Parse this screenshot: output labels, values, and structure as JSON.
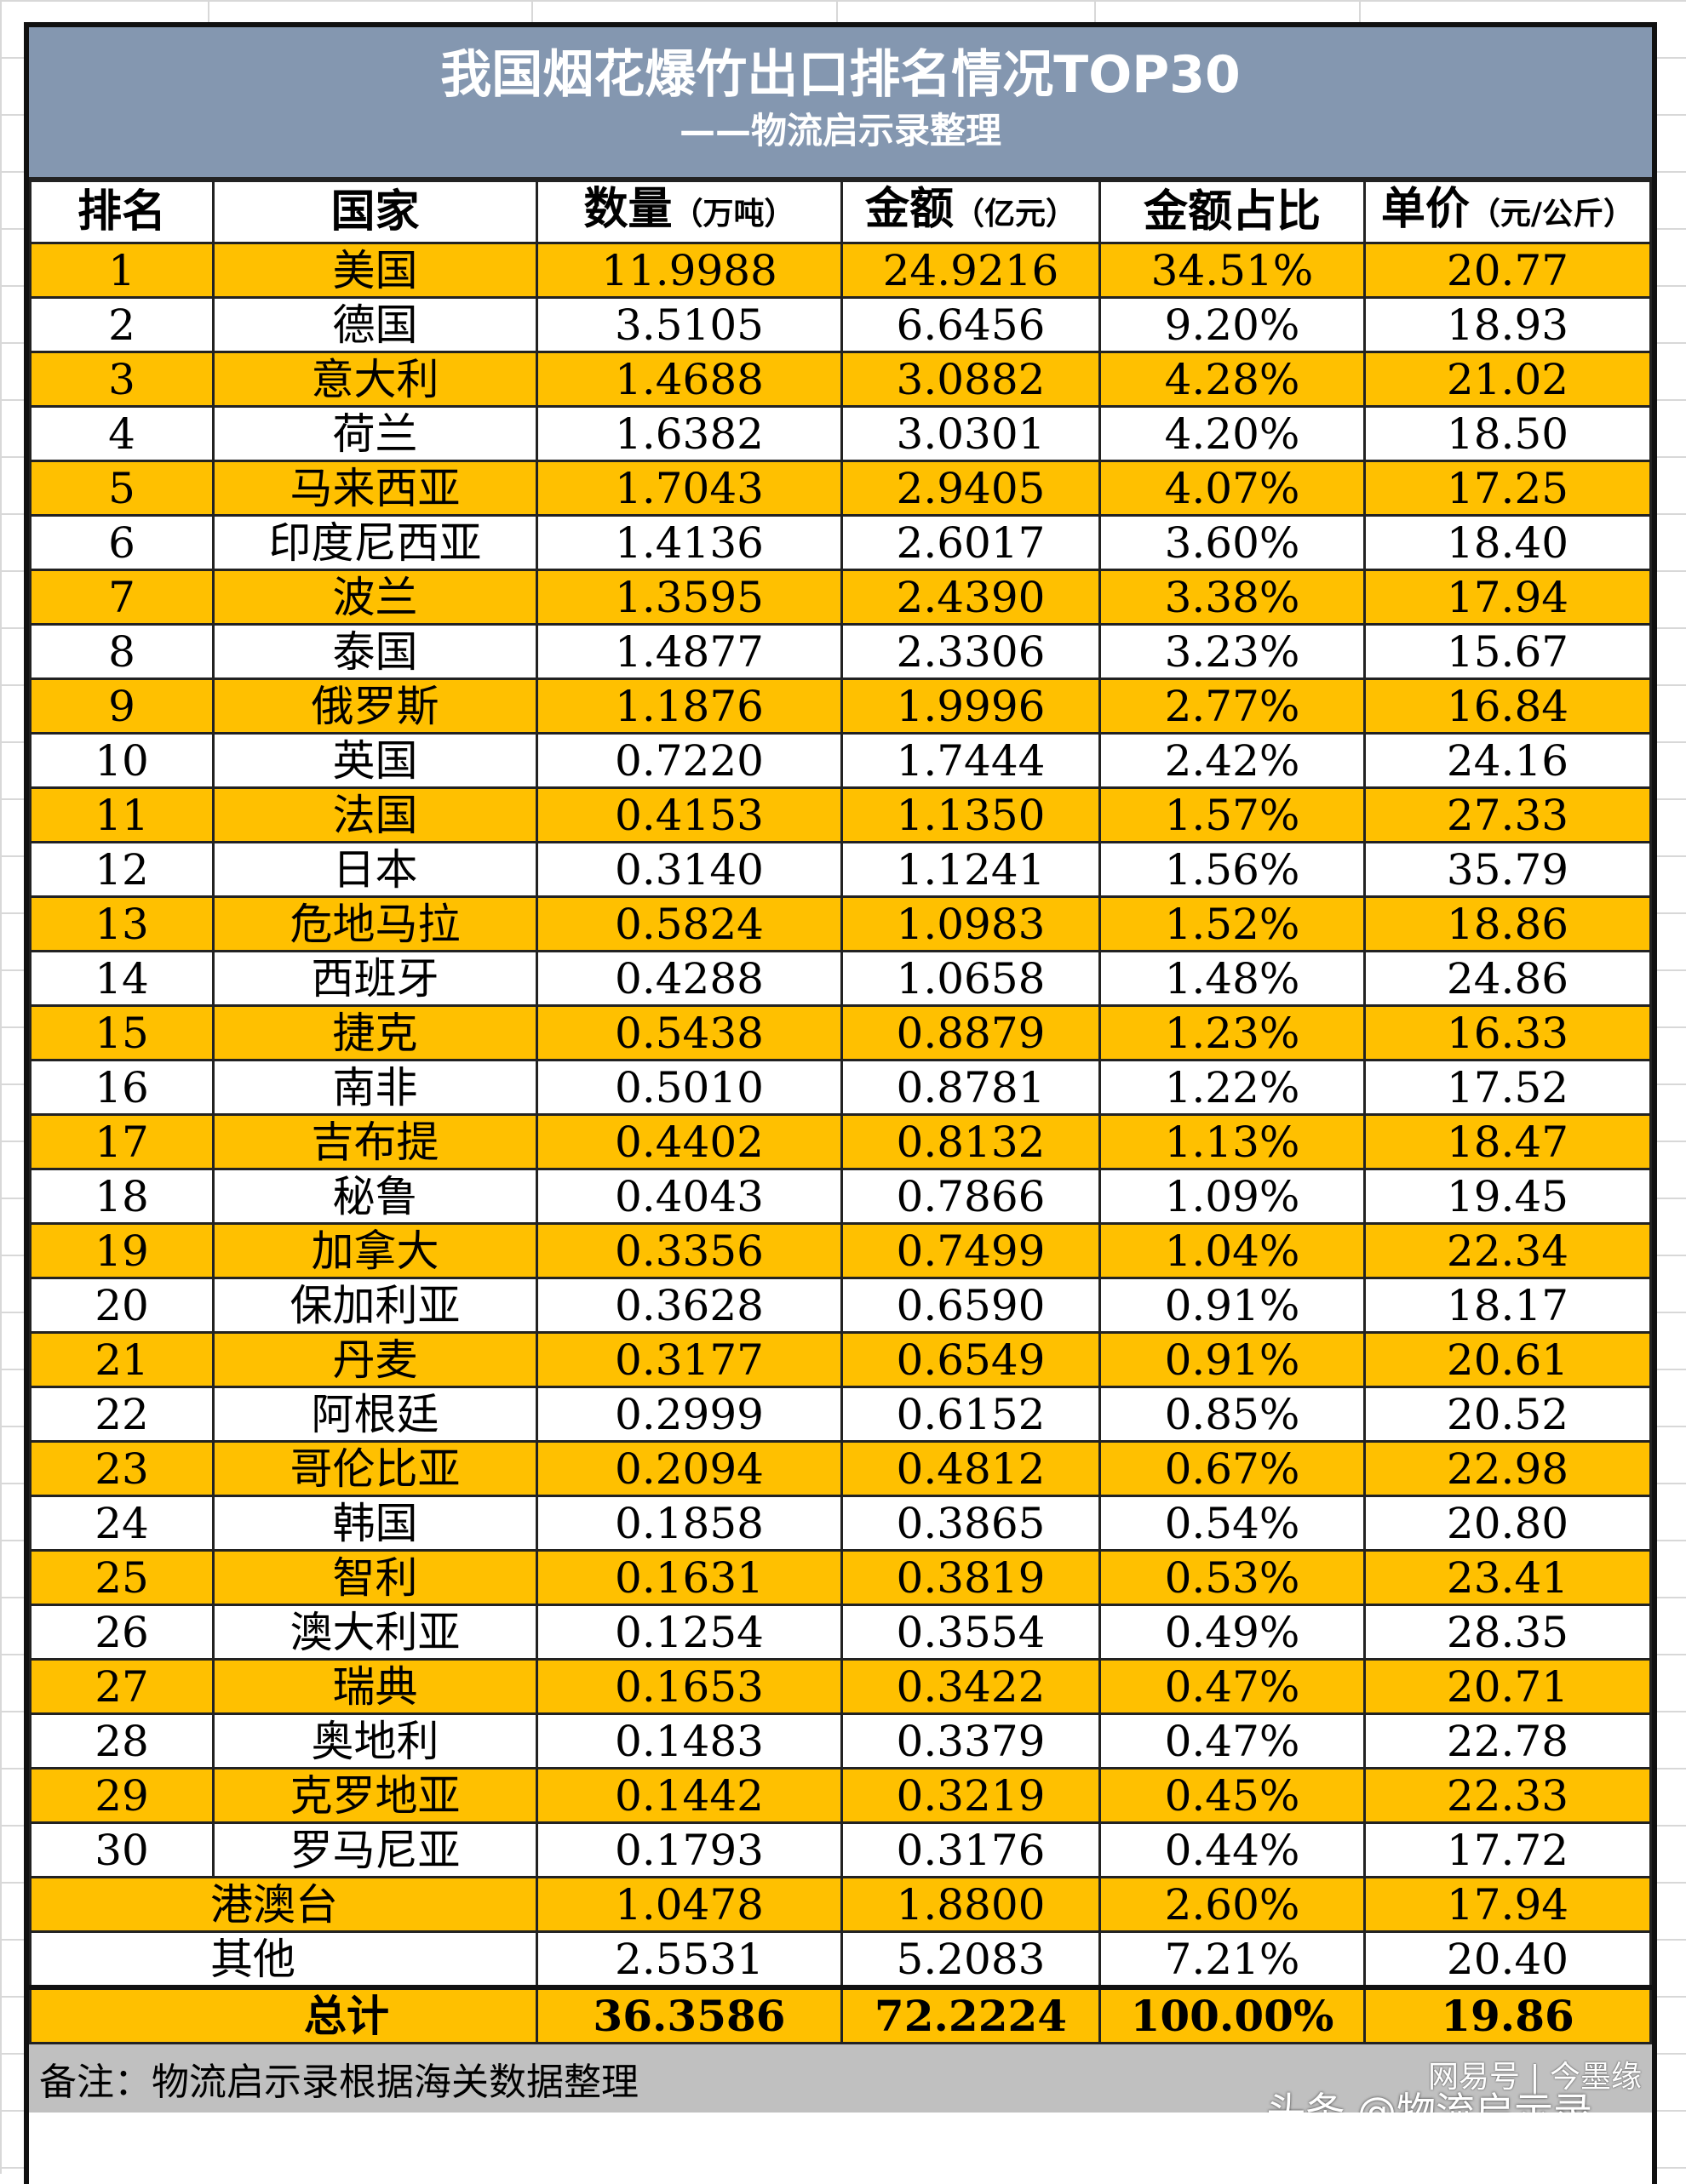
{
  "title": "我国烟花爆竹出口排名情况TOP30",
  "subtitle": "——物流启示录整理",
  "headers": [
    {
      "main": "排名",
      "unit": ""
    },
    {
      "main": "国家",
      "unit": ""
    },
    {
      "main": "数量",
      "unit": "（万吨）"
    },
    {
      "main": "金额",
      "unit": "（亿元）"
    },
    {
      "main": "金额占比",
      "unit": ""
    },
    {
      "main": "单价",
      "unit": "（元/公斤）"
    }
  ],
  "rows": [
    [
      "1",
      "美国",
      "11.9988",
      "24.9216",
      "34.51%",
      "20.77"
    ],
    [
      "2",
      "德国",
      "3.5105",
      "6.6456",
      "9.20%",
      "18.93"
    ],
    [
      "3",
      "意大利",
      "1.4688",
      "3.0882",
      "4.28%",
      "21.02"
    ],
    [
      "4",
      "荷兰",
      "1.6382",
      "3.0301",
      "4.20%",
      "18.50"
    ],
    [
      "5",
      "马来西亚",
      "1.7043",
      "2.9405",
      "4.07%",
      "17.25"
    ],
    [
      "6",
      "印度尼西亚",
      "1.4136",
      "2.6017",
      "3.60%",
      "18.40"
    ],
    [
      "7",
      "波兰",
      "1.3595",
      "2.4390",
      "3.38%",
      "17.94"
    ],
    [
      "8",
      "泰国",
      "1.4877",
      "2.3306",
      "3.23%",
      "15.67"
    ],
    [
      "9",
      "俄罗斯",
      "1.1876",
      "1.9996",
      "2.77%",
      "16.84"
    ],
    [
      "10",
      "英国",
      "0.7220",
      "1.7444",
      "2.42%",
      "24.16"
    ],
    [
      "11",
      "法国",
      "0.4153",
      "1.1350",
      "1.57%",
      "27.33"
    ],
    [
      "12",
      "日本",
      "0.3140",
      "1.1241",
      "1.56%",
      "35.79"
    ],
    [
      "13",
      "危地马拉",
      "0.5824",
      "1.0983",
      "1.52%",
      "18.86"
    ],
    [
      "14",
      "西班牙",
      "0.4288",
      "1.0658",
      "1.48%",
      "24.86"
    ],
    [
      "15",
      "捷克",
      "0.5438",
      "0.8879",
      "1.23%",
      "16.33"
    ],
    [
      "16",
      "南非",
      "0.5010",
      "0.8781",
      "1.22%",
      "17.52"
    ],
    [
      "17",
      "吉布提",
      "0.4402",
      "0.8132",
      "1.13%",
      "18.47"
    ],
    [
      "18",
      "秘鲁",
      "0.4043",
      "0.7866",
      "1.09%",
      "19.45"
    ],
    [
      "19",
      "加拿大",
      "0.3356",
      "0.7499",
      "1.04%",
      "22.34"
    ],
    [
      "20",
      "保加利亚",
      "0.3628",
      "0.6590",
      "0.91%",
      "18.17"
    ],
    [
      "21",
      "丹麦",
      "0.3177",
      "0.6549",
      "0.91%",
      "20.61"
    ],
    [
      "22",
      "阿根廷",
      "0.2999",
      "0.6152",
      "0.85%",
      "20.52"
    ],
    [
      "23",
      "哥伦比亚",
      "0.2094",
      "0.4812",
      "0.67%",
      "22.98"
    ],
    [
      "24",
      "韩国",
      "0.1858",
      "0.3865",
      "0.54%",
      "20.80"
    ],
    [
      "25",
      "智利",
      "0.1631",
      "0.3819",
      "0.53%",
      "23.41"
    ],
    [
      "26",
      "澳大利亚",
      "0.1254",
      "0.3554",
      "0.49%",
      "28.35"
    ],
    [
      "27",
      "瑞典",
      "0.1653",
      "0.3422",
      "0.47%",
      "20.71"
    ],
    [
      "28",
      "奥地利",
      "0.1483",
      "0.3379",
      "0.47%",
      "22.78"
    ],
    [
      "29",
      "克罗地亚",
      "0.1442",
      "0.3219",
      "0.45%",
      "22.33"
    ],
    [
      "30",
      "罗马尼亚",
      "0.1793",
      "0.3176",
      "0.44%",
      "17.72"
    ]
  ],
  "extra_rows": [
    [
      "港澳台",
      "1.0478",
      "1.8800",
      "2.60%",
      "17.94"
    ],
    [
      "其他",
      "2.5531",
      "5.2083",
      "7.21%",
      "20.40"
    ]
  ],
  "total": [
    "总计",
    "36.3586",
    "72.2224",
    "100.00%",
    "19.86"
  ],
  "note": "备注：物流启示录根据海关数据整理",
  "watermarks": [
    "网易号 | 今墨缘",
    "头条 @物流启示录"
  ],
  "colors": {
    "title_bg": "#8497b0",
    "highlight": "#ffc000",
    "note_bg": "#c0c0c0"
  }
}
